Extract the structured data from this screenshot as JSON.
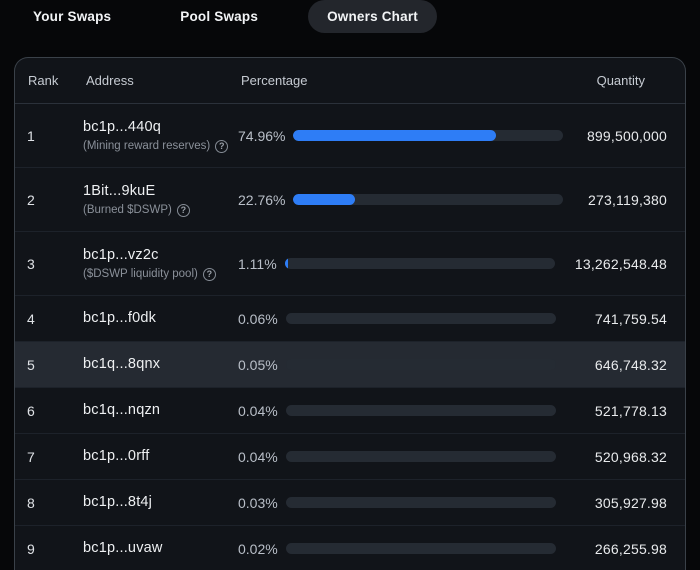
{
  "tabs": [
    {
      "label": "Your Swaps",
      "active": false
    },
    {
      "label": "Pool Swaps",
      "active": false
    },
    {
      "label": "Owners Chart",
      "active": true
    }
  ],
  "table": {
    "headers": {
      "rank": "Rank",
      "address": "Address",
      "percentage": "Percentage",
      "quantity": "Quantity"
    },
    "help_icon_glyph": "?",
    "bar_colors": {
      "fill": "#2e7df6",
      "track": "#252b33"
    },
    "rows": [
      {
        "rank": "1",
        "address": "bc1p...440q",
        "sublabel": "(Mining reward reserves)",
        "has_help": true,
        "percent_label": "74.96%",
        "percent_value": 74.96,
        "quantity": "899,500,000",
        "highlighted": false
      },
      {
        "rank": "2",
        "address": "1Bit...9kuE",
        "sublabel": "(Burned $DSWP)",
        "has_help": true,
        "percent_label": "22.76%",
        "percent_value": 22.76,
        "quantity": "273,119,380",
        "highlighted": false
      },
      {
        "rank": "3",
        "address": "bc1p...vz2c",
        "sublabel": "($DSWP liquidity pool)",
        "has_help": true,
        "percent_label": "1.11%",
        "percent_value": 1.11,
        "quantity": "13,262,548.48",
        "highlighted": false
      },
      {
        "rank": "4",
        "address": "bc1p...f0dk",
        "sublabel": "",
        "has_help": false,
        "percent_label": "0.06%",
        "percent_value": 0.06,
        "quantity": "741,759.54",
        "highlighted": false
      },
      {
        "rank": "5",
        "address": "bc1q...8qnx",
        "sublabel": "",
        "has_help": false,
        "percent_label": "0.05%",
        "percent_value": 0.05,
        "quantity": "646,748.32",
        "highlighted": true
      },
      {
        "rank": "6",
        "address": "bc1q...nqzn",
        "sublabel": "",
        "has_help": false,
        "percent_label": "0.04%",
        "percent_value": 0.04,
        "quantity": "521,778.13",
        "highlighted": false
      },
      {
        "rank": "7",
        "address": "bc1p...0rff",
        "sublabel": "",
        "has_help": false,
        "percent_label": "0.04%",
        "percent_value": 0.04,
        "quantity": "520,968.32",
        "highlighted": false
      },
      {
        "rank": "8",
        "address": "bc1p...8t4j",
        "sublabel": "",
        "has_help": false,
        "percent_label": "0.03%",
        "percent_value": 0.03,
        "quantity": "305,927.98",
        "highlighted": false
      },
      {
        "rank": "9",
        "address": "bc1p...uvaw",
        "sublabel": "",
        "has_help": false,
        "percent_label": "0.02%",
        "percent_value": 0.02,
        "quantity": "266,255.98",
        "highlighted": false
      }
    ]
  }
}
